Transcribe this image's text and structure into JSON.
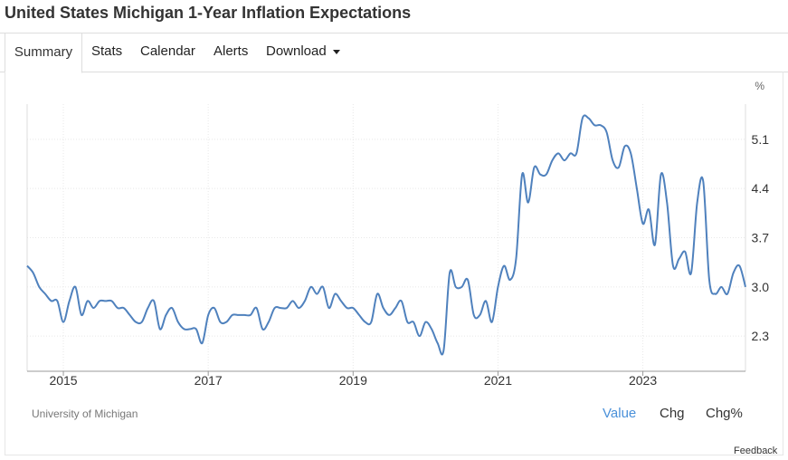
{
  "page": {
    "title": "United States Michigan 1-Year Inflation Expectations"
  },
  "tabs": [
    {
      "label": "Summary",
      "active": true
    },
    {
      "label": "Stats"
    },
    {
      "label": "Calendar"
    },
    {
      "label": "Alerts"
    },
    {
      "label": "Download"
    }
  ],
  "footer": {
    "source": "University of Michigan",
    "toggles": [
      "Value",
      "Chg",
      "Chg%"
    ],
    "feedback": "Feedback"
  },
  "colors": {
    "line": "#4f81bd",
    "active_toggle": "#4a90d9",
    "grid": "#e8e8e8"
  },
  "chart_data": {
    "type": "line",
    "title": "",
    "xlabel": "",
    "ylabel": "%",
    "x_ticks": [
      "2015",
      "2017",
      "2019",
      "2021",
      "2023"
    ],
    "y_ticks": [
      "2.3",
      "3.0",
      "3.7",
      "4.4",
      "5.1"
    ],
    "ylim": [
      1.8,
      5.6
    ],
    "xlim": [
      "2014-07",
      "2024-06"
    ],
    "grid": true,
    "series": [
      {
        "values": [
          [
            "2014-07",
            3.3
          ],
          [
            "2014-08",
            3.2
          ],
          [
            "2014-09",
            3.0
          ],
          [
            "2014-10",
            2.9
          ],
          [
            "2014-11",
            2.8
          ],
          [
            "2014-12",
            2.8
          ],
          [
            "2015-01",
            2.5
          ],
          [
            "2015-02",
            2.8
          ],
          [
            "2015-03",
            3.0
          ],
          [
            "2015-04",
            2.6
          ],
          [
            "2015-05",
            2.8
          ],
          [
            "2015-06",
            2.7
          ],
          [
            "2015-07",
            2.8
          ],
          [
            "2015-08",
            2.8
          ],
          [
            "2015-09",
            2.8
          ],
          [
            "2015-10",
            2.7
          ],
          [
            "2015-11",
            2.7
          ],
          [
            "2015-12",
            2.6
          ],
          [
            "2016-01",
            2.5
          ],
          [
            "2016-02",
            2.5
          ],
          [
            "2016-03",
            2.7
          ],
          [
            "2016-04",
            2.8
          ],
          [
            "2016-05",
            2.4
          ],
          [
            "2016-06",
            2.6
          ],
          [
            "2016-07",
            2.7
          ],
          [
            "2016-08",
            2.5
          ],
          [
            "2016-09",
            2.4
          ],
          [
            "2016-10",
            2.4
          ],
          [
            "2016-11",
            2.4
          ],
          [
            "2016-12",
            2.2
          ],
          [
            "2017-01",
            2.6
          ],
          [
            "2017-02",
            2.7
          ],
          [
            "2017-03",
            2.5
          ],
          [
            "2017-04",
            2.5
          ],
          [
            "2017-05",
            2.6
          ],
          [
            "2017-06",
            2.6
          ],
          [
            "2017-07",
            2.6
          ],
          [
            "2017-08",
            2.6
          ],
          [
            "2017-09",
            2.7
          ],
          [
            "2017-10",
            2.4
          ],
          [
            "2017-11",
            2.5
          ],
          [
            "2017-12",
            2.7
          ],
          [
            "2018-01",
            2.7
          ],
          [
            "2018-02",
            2.7
          ],
          [
            "2018-03",
            2.8
          ],
          [
            "2018-04",
            2.7
          ],
          [
            "2018-05",
            2.8
          ],
          [
            "2018-06",
            3.0
          ],
          [
            "2018-07",
            2.9
          ],
          [
            "2018-08",
            3.0
          ],
          [
            "2018-09",
            2.7
          ],
          [
            "2018-10",
            2.9
          ],
          [
            "2018-11",
            2.8
          ],
          [
            "2018-12",
            2.7
          ],
          [
            "2019-01",
            2.7
          ],
          [
            "2019-02",
            2.6
          ],
          [
            "2019-03",
            2.5
          ],
          [
            "2019-04",
            2.5
          ],
          [
            "2019-05",
            2.9
          ],
          [
            "2019-06",
            2.7
          ],
          [
            "2019-07",
            2.6
          ],
          [
            "2019-08",
            2.7
          ],
          [
            "2019-09",
            2.8
          ],
          [
            "2019-10",
            2.5
          ],
          [
            "2019-11",
            2.5
          ],
          [
            "2019-12",
            2.3
          ],
          [
            "2020-01",
            2.5
          ],
          [
            "2020-02",
            2.4
          ],
          [
            "2020-03",
            2.2
          ],
          [
            "2020-04",
            2.1
          ],
          [
            "2020-05",
            3.2
          ],
          [
            "2020-06",
            3.0
          ],
          [
            "2020-07",
            3.0
          ],
          [
            "2020-08",
            3.1
          ],
          [
            "2020-09",
            2.6
          ],
          [
            "2020-10",
            2.6
          ],
          [
            "2020-11",
            2.8
          ],
          [
            "2020-12",
            2.5
          ],
          [
            "2021-01",
            3.0
          ],
          [
            "2021-02",
            3.3
          ],
          [
            "2021-03",
            3.1
          ],
          [
            "2021-04",
            3.4
          ],
          [
            "2021-05",
            4.6
          ],
          [
            "2021-06",
            4.2
          ],
          [
            "2021-07",
            4.7
          ],
          [
            "2021-08",
            4.6
          ],
          [
            "2021-09",
            4.6
          ],
          [
            "2021-10",
            4.8
          ],
          [
            "2021-11",
            4.9
          ],
          [
            "2021-12",
            4.8
          ],
          [
            "2022-01",
            4.9
          ],
          [
            "2022-02",
            4.9
          ],
          [
            "2022-03",
            5.4
          ],
          [
            "2022-04",
            5.4
          ],
          [
            "2022-05",
            5.3
          ],
          [
            "2022-06",
            5.3
          ],
          [
            "2022-07",
            5.2
          ],
          [
            "2022-08",
            4.8
          ],
          [
            "2022-09",
            4.7
          ],
          [
            "2022-10",
            5.0
          ],
          [
            "2022-11",
            4.9
          ],
          [
            "2022-12",
            4.4
          ],
          [
            "2023-01",
            3.9
          ],
          [
            "2023-02",
            4.1
          ],
          [
            "2023-03",
            3.6
          ],
          [
            "2023-04",
            4.6
          ],
          [
            "2023-05",
            4.2
          ],
          [
            "2023-06",
            3.3
          ],
          [
            "2023-07",
            3.4
          ],
          [
            "2023-08",
            3.5
          ],
          [
            "2023-09",
            3.2
          ],
          [
            "2023-10",
            4.2
          ],
          [
            "2023-11",
            4.5
          ],
          [
            "2023-12",
            3.1
          ],
          [
            "2024-01",
            2.9
          ],
          [
            "2024-02",
            3.0
          ],
          [
            "2024-03",
            2.9
          ],
          [
            "2024-04",
            3.2
          ],
          [
            "2024-05",
            3.3
          ],
          [
            "2024-06",
            3.0
          ]
        ]
      }
    ]
  }
}
